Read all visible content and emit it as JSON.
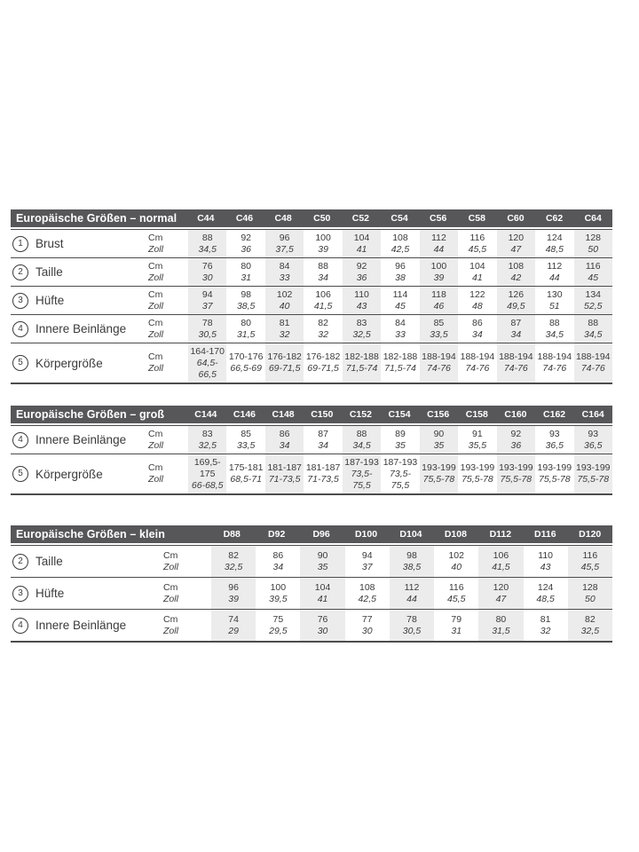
{
  "colors": {
    "header_bg": "#57575a",
    "header_text": "#ffffff",
    "column_stripe": "#ececec",
    "rule_line": "#4c4c4e",
    "body_text": "#3b3b3b"
  },
  "units": {
    "cm": "Cm",
    "zoll": "Zoll"
  },
  "tables": [
    {
      "id": "normal",
      "title": "Europäische Größen – normal",
      "columns": [
        "C44",
        "C46",
        "C48",
        "C50",
        "C52",
        "C54",
        "C56",
        "C58",
        "C60",
        "C62",
        "C64"
      ],
      "rows": [
        {
          "num": "1",
          "label": "Brust",
          "cm": [
            "88",
            "92",
            "96",
            "100",
            "104",
            "108",
            "112",
            "116",
            "120",
            "124",
            "128"
          ],
          "zoll": [
            "34,5",
            "36",
            "37,5",
            "39",
            "41",
            "42,5",
            "44",
            "45,5",
            "47",
            "48,5",
            "50"
          ]
        },
        {
          "num": "2",
          "label": "Taille",
          "cm": [
            "76",
            "80",
            "84",
            "88",
            "92",
            "96",
            "100",
            "104",
            "108",
            "112",
            "116"
          ],
          "zoll": [
            "30",
            "31",
            "33",
            "34",
            "36",
            "38",
            "39",
            "41",
            "42",
            "44",
            "45"
          ]
        },
        {
          "num": "3",
          "label": "Hüfte",
          "cm": [
            "94",
            "98",
            "102",
            "106",
            "110",
            "114",
            "118",
            "122",
            "126",
            "130",
            "134"
          ],
          "zoll": [
            "37",
            "38,5",
            "40",
            "41,5",
            "43",
            "45",
            "46",
            "48",
            "49,5",
            "51",
            "52,5"
          ]
        },
        {
          "num": "4",
          "label": "Innere Beinlänge",
          "cm": [
            "78",
            "80",
            "81",
            "82",
            "83",
            "84",
            "85",
            "86",
            "87",
            "88",
            "88"
          ],
          "zoll": [
            "30,5",
            "31,5",
            "32",
            "32",
            "32,5",
            "33",
            "33,5",
            "34",
            "34",
            "34,5",
            "34,5"
          ]
        },
        {
          "num": "5",
          "label": "Körpergröße",
          "cm": [
            "164-170",
            "170-176",
            "176-182",
            "176-182",
            "182-188",
            "182-188",
            "188-194",
            "188-194",
            "188-194",
            "188-194",
            "188-194"
          ],
          "zoll": [
            "64,5-66,5",
            "66,5-69",
            "69-71,5",
            "69-71,5",
            "71,5-74",
            "71,5-74",
            "74-76",
            "74-76",
            "74-76",
            "74-76",
            "74-76"
          ]
        }
      ]
    },
    {
      "id": "gross",
      "title": "Europäische Größen – groß",
      "columns": [
        "C144",
        "C146",
        "C148",
        "C150",
        "C152",
        "C154",
        "C156",
        "C158",
        "C160",
        "C162",
        "C164"
      ],
      "rows": [
        {
          "num": "4",
          "label": "Innere Beinlänge",
          "cm": [
            "83",
            "85",
            "86",
            "87",
            "88",
            "89",
            "90",
            "91",
            "92",
            "93",
            "93"
          ],
          "zoll": [
            "32,5",
            "33,5",
            "34",
            "34",
            "34,5",
            "35",
            "35",
            "35,5",
            "36",
            "36,5",
            "36,5"
          ]
        },
        {
          "num": "5",
          "label": "Körpergröße",
          "cm": [
            "169,5-175",
            "175-181",
            "181-187",
            "181-187",
            "187-193",
            "187-193",
            "193-199",
            "193-199",
            "193-199",
            "193-199",
            "193-199"
          ],
          "zoll": [
            "66-68,5",
            "68,5-71",
            "71-73,5",
            "71-73,5",
            "73,5-75,5",
            "73,5-75,5",
            "75,5-78",
            "75,5-78",
            "75,5-78",
            "75,5-78",
            "75,5-78"
          ]
        }
      ]
    },
    {
      "id": "klein",
      "title": "Europäische Größen – klein",
      "columns": [
        "D88",
        "D92",
        "D96",
        "D100",
        "D104",
        "D108",
        "D112",
        "D116",
        "D120"
      ],
      "rows": [
        {
          "num": "2",
          "label": "Taille",
          "cm": [
            "82",
            "86",
            "90",
            "94",
            "98",
            "102",
            "106",
            "110",
            "116"
          ],
          "zoll": [
            "32,5",
            "34",
            "35",
            "37",
            "38,5",
            "40",
            "41,5",
            "43",
            "45,5"
          ]
        },
        {
          "num": "3",
          "label": "Hüfte",
          "cm": [
            "96",
            "100",
            "104",
            "108",
            "112",
            "116",
            "120",
            "124",
            "128"
          ],
          "zoll": [
            "39",
            "39,5",
            "41",
            "42,5",
            "44",
            "45,5",
            "47",
            "48,5",
            "50"
          ]
        },
        {
          "num": "4",
          "label": "Innere Beinlänge",
          "cm": [
            "74",
            "75",
            "76",
            "77",
            "78",
            "79",
            "80",
            "81",
            "82"
          ],
          "zoll": [
            "29",
            "29,5",
            "30",
            "30",
            "30,5",
            "31",
            "31,5",
            "32",
            "32,5"
          ]
        }
      ]
    }
  ]
}
